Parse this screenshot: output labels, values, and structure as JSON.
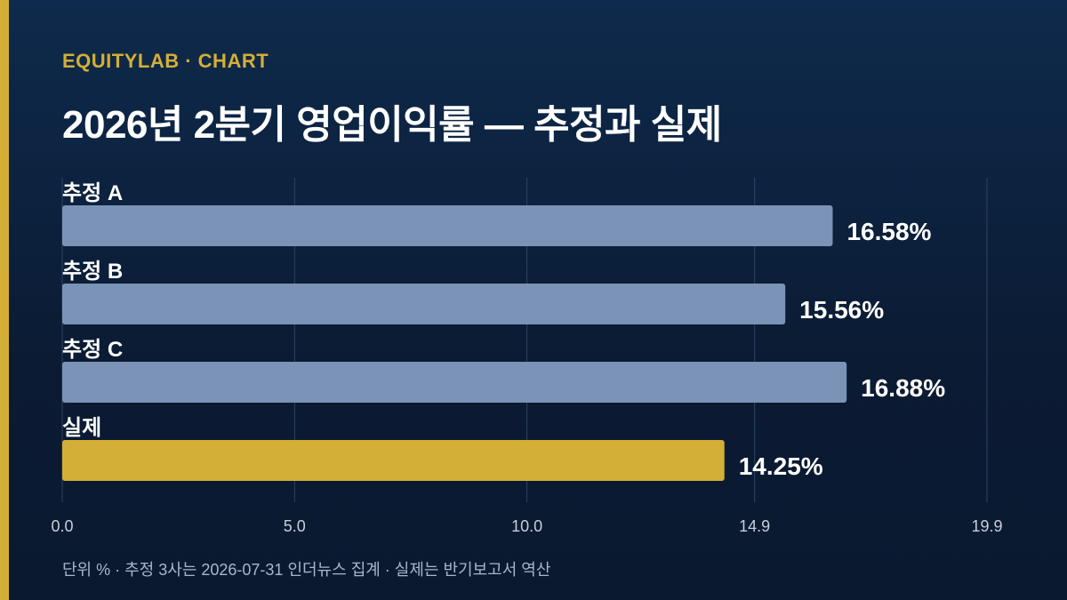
{
  "header": {
    "brand": "EQUITYLAB · CHART",
    "title": "2026년 2분기 영업이익률 — 추정과 실제"
  },
  "footnote": "단위 % · 추정 3사는 2026-07-31 인더뉴스 집계 · 실제는 반기보고서 역산",
  "colors": {
    "background_top": "#0e2a4c",
    "background_bottom": "#0a1930",
    "accent": "#d4af37",
    "estimate_bar": "#7a93b6",
    "actual_bar": "#d4af37",
    "gridline": "#2c4463",
    "tick_label": "#c5cfdc",
    "footnote": "#a9b6c8"
  },
  "chart_data": {
    "type": "bar",
    "orientation": "horizontal",
    "categories": [
      "추정 A",
      "추정 B",
      "추정 C",
      "실제"
    ],
    "values": [
      16.58,
      15.56,
      16.88,
      14.25
    ],
    "value_labels": [
      "16.58%",
      "15.56%",
      "16.88%",
      "14.25%"
    ],
    "highlight_index": 3,
    "xlim": [
      0,
      19.9
    ],
    "xticks": [
      0,
      5,
      10,
      14.9,
      19.9
    ],
    "xtick_labels": [
      "0.0",
      "5.0",
      "10.0",
      "14.9",
      "19.9"
    ],
    "grid": true,
    "title": "2026년 2분기 영업이익률 — 추정과 실제",
    "xlabel": "",
    "ylabel": ""
  }
}
